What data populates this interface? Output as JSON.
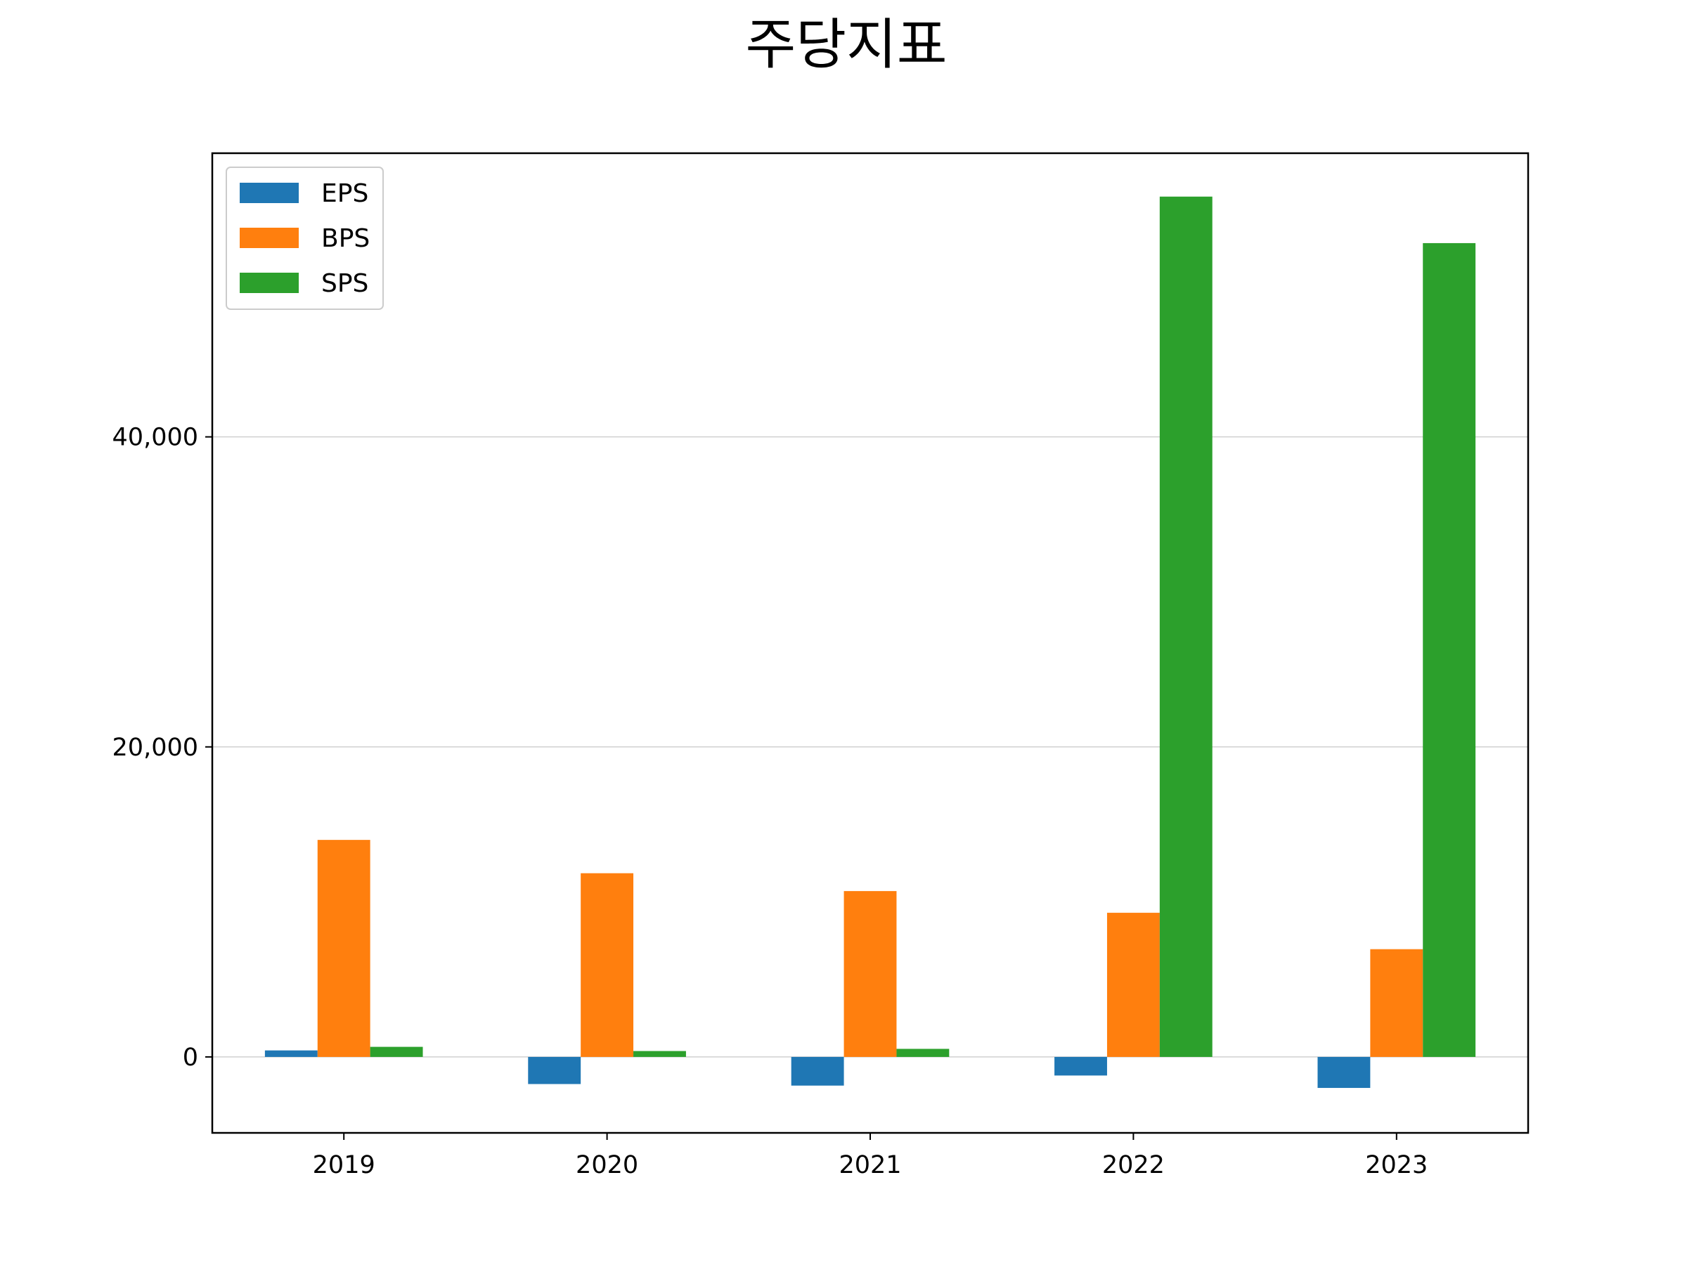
{
  "chart_data": {
    "type": "bar",
    "title": "주당지표",
    "xlabel": "",
    "ylabel": "",
    "categories": [
      "2019",
      "2020",
      "2021",
      "2022",
      "2023"
    ],
    "series": [
      {
        "name": "EPS",
        "color": "#1f77b4",
        "values": [
          420,
          -1750,
          -1850,
          -1200,
          -2000
        ]
      },
      {
        "name": "BPS",
        "color": "#ff7f0e",
        "values": [
          14000,
          11850,
          10700,
          9300,
          6950
        ]
      },
      {
        "name": "SPS",
        "color": "#2ca02c",
        "values": [
          650,
          380,
          520,
          55500,
          52500
        ]
      }
    ],
    "ylim": [
      -4900,
      58300
    ],
    "yticks": [
      0,
      20000,
      40000
    ],
    "ytick_labels": [
      "0",
      "20,000",
      "40,000"
    ],
    "grid": "y",
    "legend_position": "upper left"
  }
}
